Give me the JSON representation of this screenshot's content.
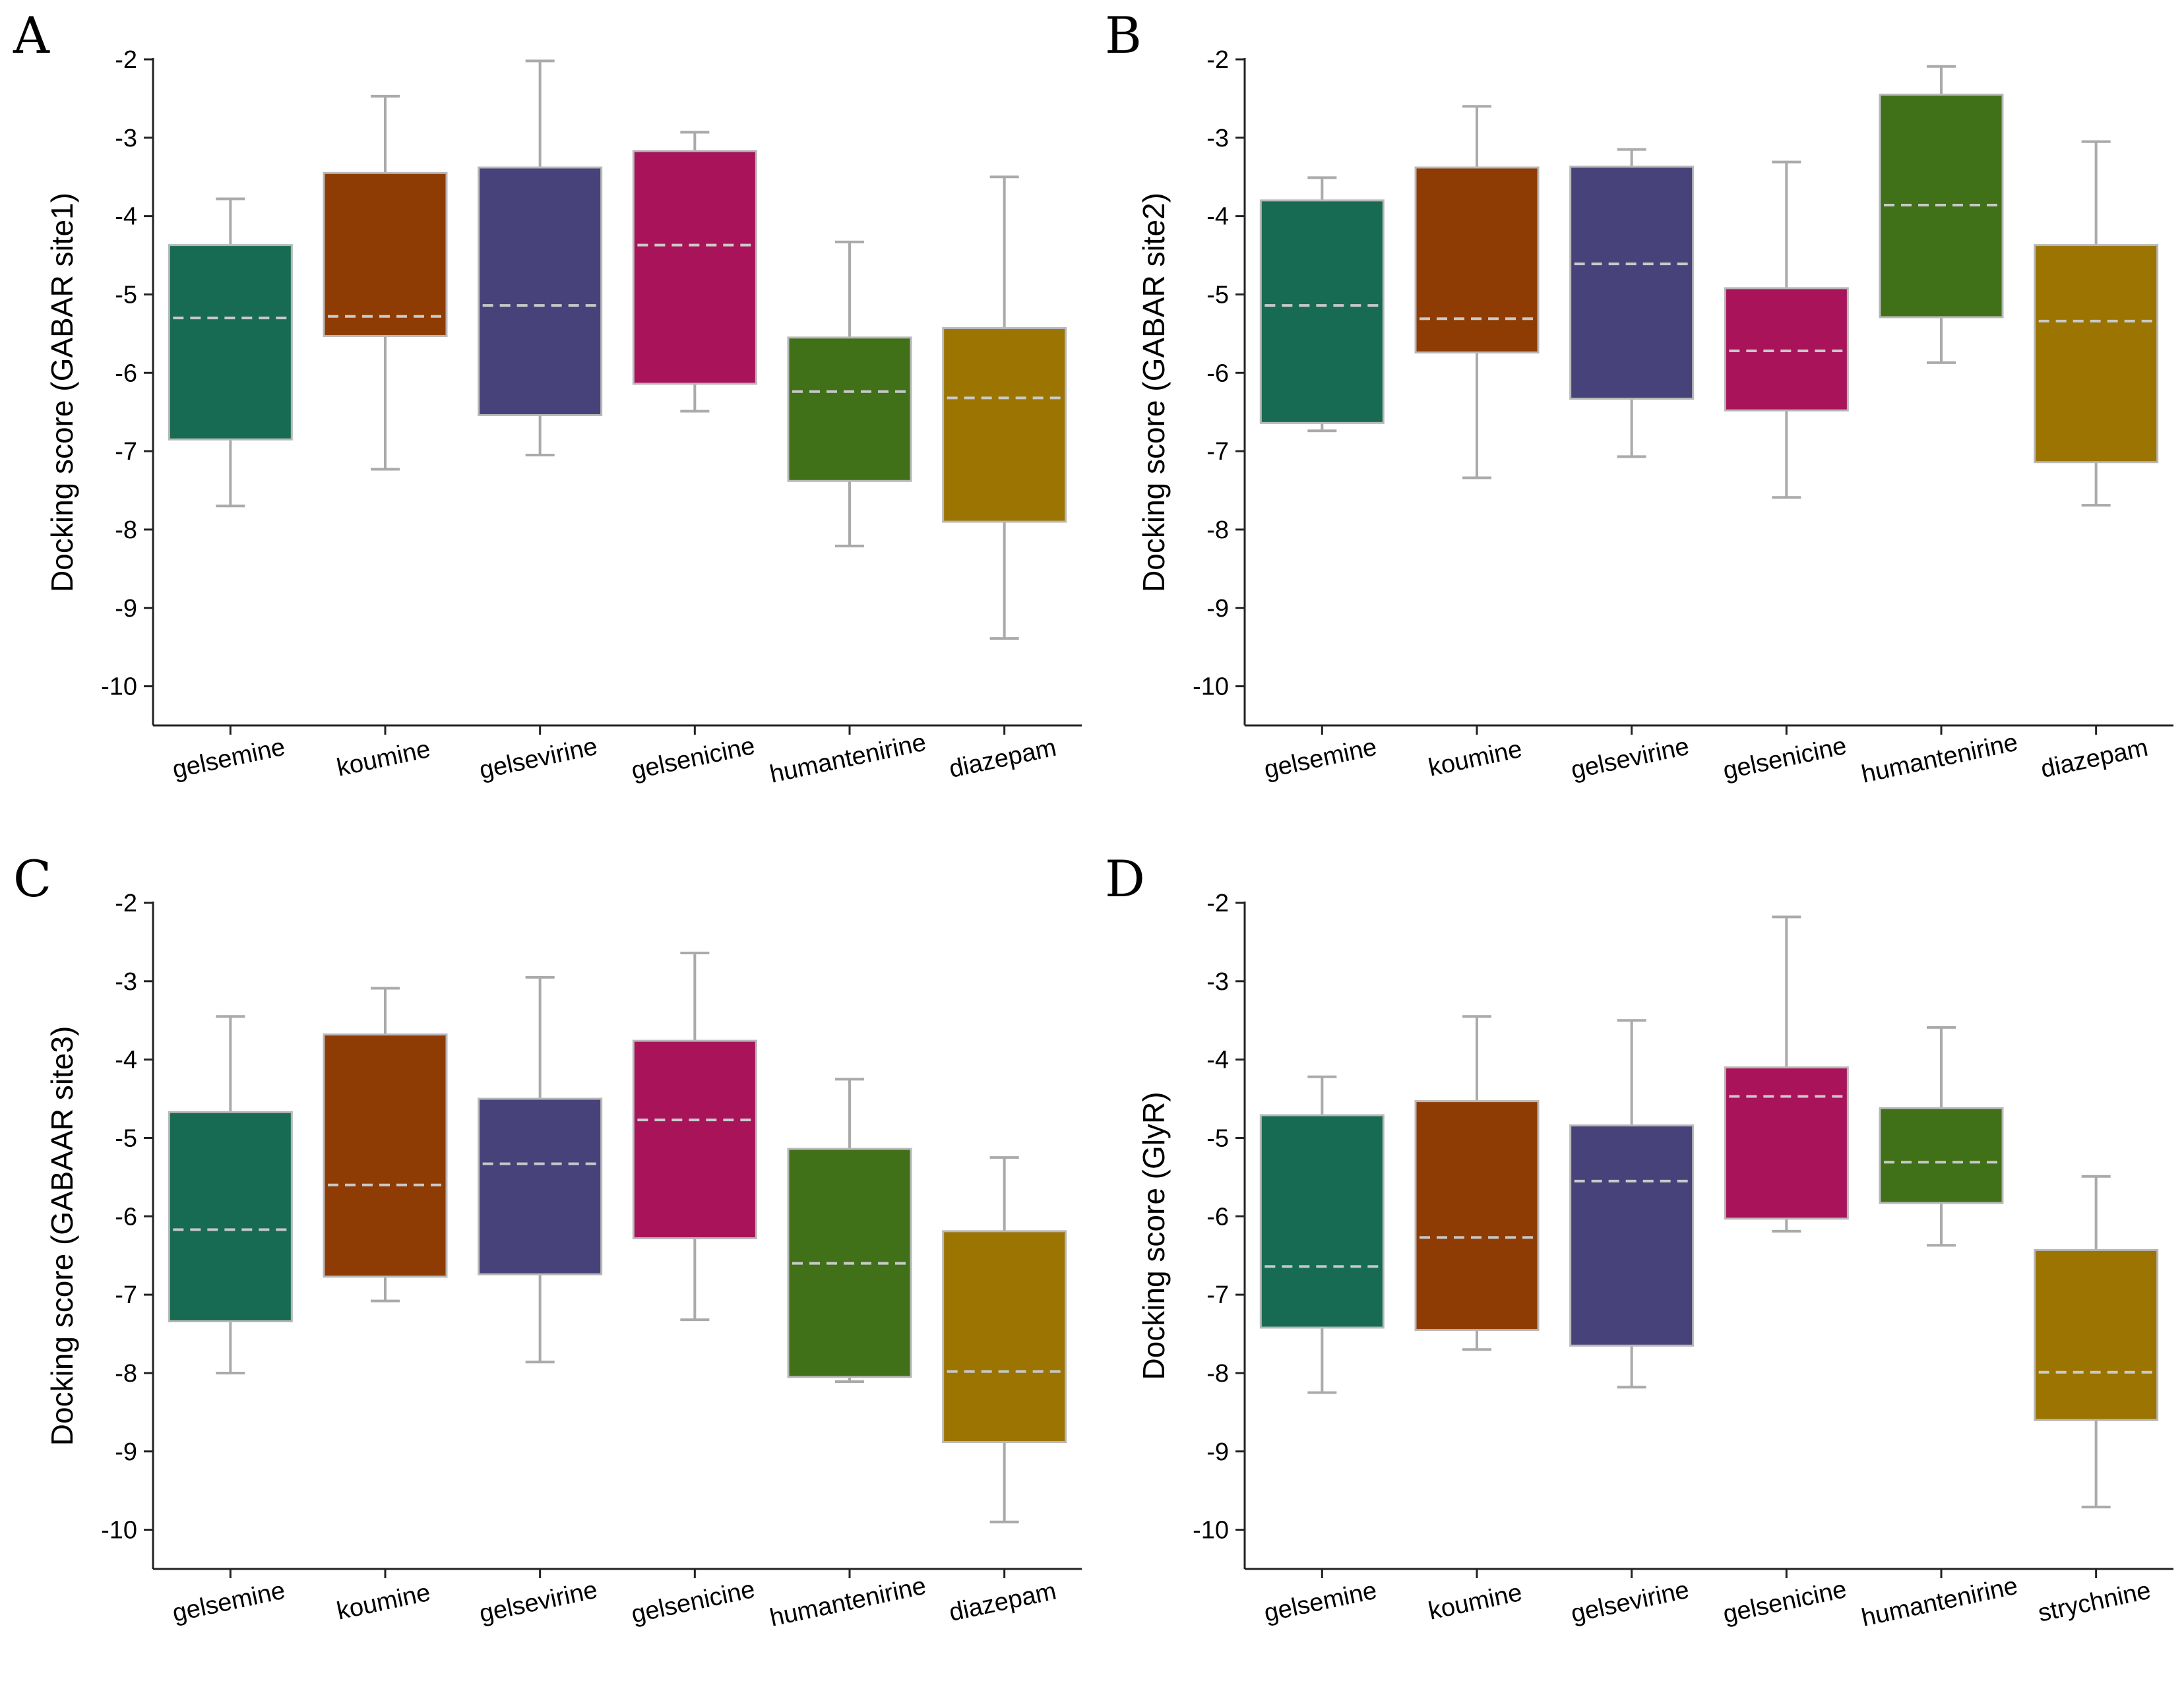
{
  "chart_data": [
    {
      "type": "box",
      "panel_label": "A",
      "ylabel": "Docking score (GABAR site1)",
      "ylim": [
        -10.5,
        -2
      ],
      "yticks": [
        -2,
        -3,
        -4,
        -5,
        -6,
        -7,
        -8,
        -9,
        -10
      ],
      "categories": [
        "gelsemine",
        "koumine",
        "gelsevirine",
        "gelsenicine",
        "humantenirine",
        "diazepam"
      ],
      "colors": [
        "#176b53",
        "#8f3c04",
        "#47427a",
        "#a8135a",
        "#407018",
        "#9b7402"
      ],
      "boxes": [
        {
          "whisker_low": -7.7,
          "q1": -6.85,
          "mean": -5.3,
          "q3": -4.37,
          "whisker_high": -3.78
        },
        {
          "whisker_low": -7.23,
          "q1": -5.53,
          "mean": -5.28,
          "q3": -3.45,
          "whisker_high": -2.47
        },
        {
          "whisker_low": -7.05,
          "q1": -6.54,
          "mean": -5.14,
          "q3": -3.38,
          "whisker_high": -2.02
        },
        {
          "whisker_low": -6.49,
          "q1": -6.14,
          "mean": -4.37,
          "q3": -3.17,
          "whisker_high": -2.93
        },
        {
          "whisker_low": -8.21,
          "q1": -7.38,
          "mean": -6.24,
          "q3": -5.55,
          "whisker_high": -4.33
        },
        {
          "whisker_low": -9.39,
          "q1": -7.9,
          "mean": -6.32,
          "q3": -5.43,
          "whisker_high": -3.5
        }
      ]
    },
    {
      "type": "box",
      "panel_label": "B",
      "ylabel": "Docking score (GABAR site2)",
      "ylim": [
        -10.5,
        -2
      ],
      "yticks": [
        -2,
        -3,
        -4,
        -5,
        -6,
        -7,
        -8,
        -9,
        -10
      ],
      "categories": [
        "gelsemine",
        "koumine",
        "gelsevirine",
        "gelsenicine",
        "humantenirine",
        "diazepam"
      ],
      "colors": [
        "#176b53",
        "#8f3c04",
        "#47427a",
        "#a8135a",
        "#407018",
        "#9b7402"
      ],
      "boxes": [
        {
          "whisker_low": -6.74,
          "q1": -6.64,
          "mean": -5.14,
          "q3": -3.8,
          "whisker_high": -3.51
        },
        {
          "whisker_low": -7.34,
          "q1": -5.74,
          "mean": -5.31,
          "q3": -3.38,
          "whisker_high": -2.6
        },
        {
          "whisker_low": -7.07,
          "q1": -6.33,
          "mean": -4.61,
          "q3": -3.37,
          "whisker_high": -3.15
        },
        {
          "whisker_low": -7.59,
          "q1": -6.48,
          "mean": -5.72,
          "q3": -4.92,
          "whisker_high": -3.31
        },
        {
          "whisker_low": -5.87,
          "q1": -5.29,
          "mean": -3.86,
          "q3": -2.45,
          "whisker_high": -2.09
        },
        {
          "whisker_low": -7.69,
          "q1": -7.14,
          "mean": -5.34,
          "q3": -4.37,
          "whisker_high": -3.05
        }
      ]
    },
    {
      "type": "box",
      "panel_label": "C",
      "ylabel": "Docking score (GABAAR site3)",
      "ylim": [
        -10.5,
        -2
      ],
      "yticks": [
        -2,
        -3,
        -4,
        -5,
        -6,
        -7,
        -8,
        -9,
        -10
      ],
      "categories": [
        "gelsemine",
        "koumine",
        "gelsevirine",
        "gelsenicine",
        "humantenirine",
        "diazepam"
      ],
      "colors": [
        "#176b53",
        "#8f3c04",
        "#47427a",
        "#a8135a",
        "#407018",
        "#9b7402"
      ],
      "boxes": [
        {
          "whisker_low": -8.0,
          "q1": -7.34,
          "mean": -6.17,
          "q3": -4.67,
          "whisker_high": -3.45
        },
        {
          "whisker_low": -7.08,
          "q1": -6.77,
          "mean": -5.6,
          "q3": -3.68,
          "whisker_high": -3.09
        },
        {
          "whisker_low": -7.86,
          "q1": -6.74,
          "mean": -5.33,
          "q3": -4.5,
          "whisker_high": -2.95
        },
        {
          "whisker_low": -7.32,
          "q1": -6.28,
          "mean": -4.77,
          "q3": -3.76,
          "whisker_high": -2.64
        },
        {
          "whisker_low": -8.11,
          "q1": -8.05,
          "mean": -6.6,
          "q3": -5.14,
          "whisker_high": -4.25
        },
        {
          "whisker_low": -9.9,
          "q1": -8.88,
          "mean": -7.98,
          "q3": -6.19,
          "whisker_high": -5.25
        }
      ]
    },
    {
      "type": "box",
      "panel_label": "D",
      "ylabel": "Docking score (GlyR)",
      "ylim": [
        -10.5,
        -2
      ],
      "yticks": [
        -2,
        -3,
        -4,
        -5,
        -6,
        -7,
        -8,
        -9,
        -10
      ],
      "categories": [
        "gelsemine",
        "koumine",
        "gelsevirine",
        "gelsenicine",
        "humantenirine",
        "strychnine"
      ],
      "colors": [
        "#176b53",
        "#8f3c04",
        "#47427a",
        "#a8135a",
        "#407018",
        "#9b7402"
      ],
      "boxes": [
        {
          "whisker_low": -8.25,
          "q1": -7.42,
          "mean": -6.64,
          "q3": -4.71,
          "whisker_high": -4.22
        },
        {
          "whisker_low": -7.7,
          "q1": -7.45,
          "mean": -6.27,
          "q3": -4.53,
          "whisker_high": -3.45
        },
        {
          "whisker_low": -8.18,
          "q1": -7.65,
          "mean": -5.55,
          "q3": -4.84,
          "whisker_high": -3.5
        },
        {
          "whisker_low": -6.19,
          "q1": -6.03,
          "mean": -4.47,
          "q3": -4.1,
          "whisker_high": -2.18
        },
        {
          "whisker_low": -6.37,
          "q1": -5.83,
          "mean": -5.31,
          "q3": -4.62,
          "whisker_high": -3.59
        },
        {
          "whisker_low": -9.71,
          "q1": -8.6,
          "mean": -7.99,
          "q3": -6.43,
          "whisker_high": -5.49
        }
      ]
    }
  ]
}
